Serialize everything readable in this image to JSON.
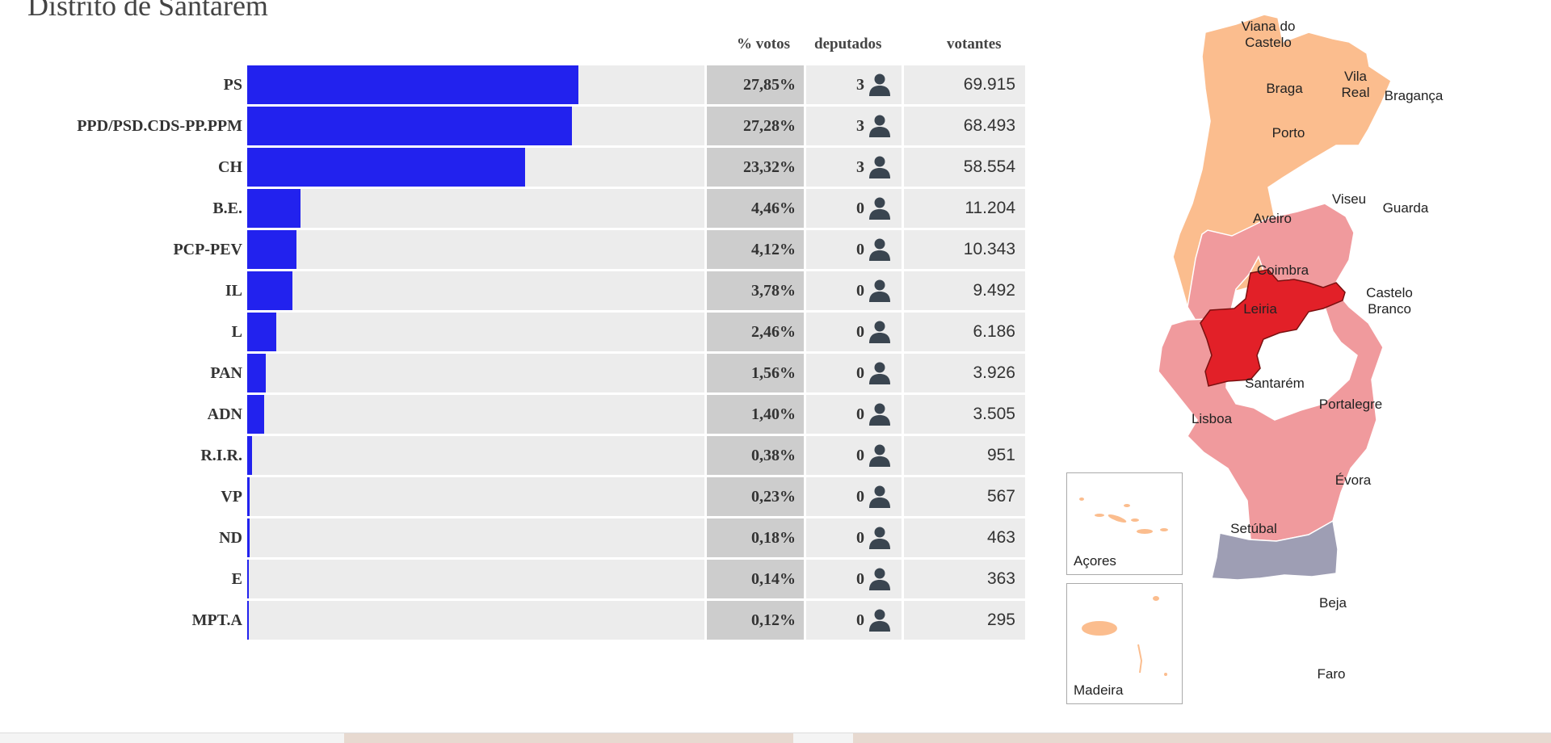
{
  "header": {
    "district_title": "Distrito de Santarém"
  },
  "table": {
    "col_pct": "% votos",
    "col_deputies": "deputados",
    "col_voters": "votantes",
    "icon": "person-icon",
    "bar_color": "#2222ee",
    "max_scale": 217
  },
  "chart_data": {
    "type": "bar",
    "title": "",
    "categories": [
      "PS",
      "PPD/PSD.CDS-PP.PPM",
      "CH",
      "B.E.",
      "PCP-PEV",
      "IL",
      "L",
      "PAN",
      "ADN",
      "R.I.R.",
      "VP",
      "ND",
      "E",
      "MPT.A"
    ],
    "values": [
      27.85,
      27.28,
      23.32,
      4.46,
      4.12,
      3.78,
      2.46,
      1.56,
      1.4,
      0.38,
      0.23,
      0.18,
      0.14,
      0.12
    ],
    "value_labels": [
      "27,85%",
      "27,28%",
      "23,32%",
      "4,46%",
      "4,12%",
      "3,78%",
      "2,46%",
      "1,56%",
      "1,40%",
      "0,38%",
      "0,23%",
      "0,18%",
      "0,14%",
      "0,12%"
    ],
    "deputies": [
      "3",
      "3",
      "3",
      "0",
      "0",
      "0",
      "0",
      "0",
      "0",
      "0",
      "0",
      "0",
      "0",
      "0"
    ],
    "voters": [
      "69.915",
      "68.493",
      "58.554",
      "11.204",
      "10.343",
      "9.492",
      "6.186",
      "3.926",
      "3.505",
      "951",
      "567",
      "463",
      "363",
      "295"
    ],
    "orientation": "horizontal"
  },
  "map": {
    "highlight_color": "#e22028",
    "colors": {
      "peach": "#fbbd8e",
      "pink": "#f09a9d",
      "red": "#e22028",
      "grey": "#9e9eb4"
    },
    "districts": [
      {
        "label": "Viana do",
        "label2": "Castelo",
        "color": "peach"
      },
      {
        "label": "Braga",
        "color": "peach"
      },
      {
        "label": "Vila",
        "label2": "Real",
        "color": "peach"
      },
      {
        "label": "Bragança",
        "color": "peach"
      },
      {
        "label": "Porto",
        "color": "peach"
      },
      {
        "label": "Aveiro",
        "color": "peach"
      },
      {
        "label": "Viseu",
        "color": "peach"
      },
      {
        "label": "Guarda",
        "color": "peach"
      },
      {
        "label": "Coimbra",
        "color": "pink"
      },
      {
        "label": "Castelo",
        "label2": "Branco",
        "color": "pink"
      },
      {
        "label": "Leiria",
        "color": "peach"
      },
      {
        "label": "Santarém",
        "color": "red"
      },
      {
        "label": "Lisboa",
        "color": "pink"
      },
      {
        "label": "Portalegre",
        "color": "pink"
      },
      {
        "label": "Évora",
        "color": "pink"
      },
      {
        "label": "Setúbal",
        "color": "pink"
      },
      {
        "label": "Beja",
        "color": "pink"
      },
      {
        "label": "Faro",
        "color": "grey"
      }
    ],
    "insets": {
      "azores": "Açores",
      "madeira": "Madeira"
    }
  }
}
